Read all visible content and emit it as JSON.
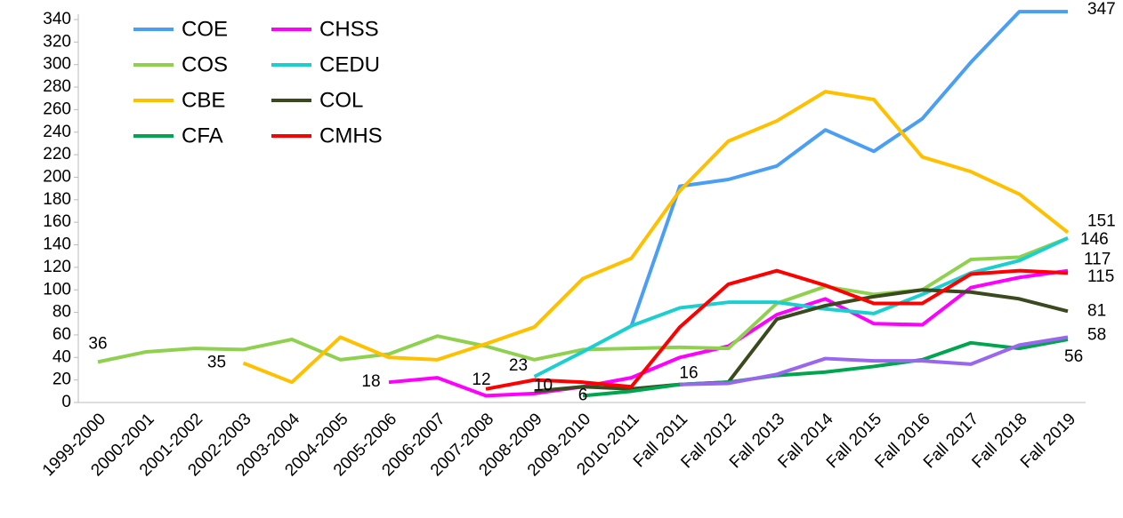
{
  "chart_data": {
    "type": "line",
    "categories": [
      "1999-2000",
      "2000-2001",
      "2001-2002",
      "2002-2003",
      "2003-2004",
      "2004-2005",
      "2005-2006",
      "2006-2007",
      "2007-2008",
      "2008-2009",
      "2009-2010",
      "2010-2011",
      "Fall 2011",
      "Fall 2012",
      "Fall 2013",
      "Fall 2014",
      "Fall 2015",
      "Fall 2016",
      "Fall 2017",
      "Fall 2018",
      "Fall 2019"
    ],
    "series": [
      {
        "name": "COE",
        "color": "#4a9ff5",
        "values": [
          null,
          null,
          null,
          null,
          null,
          null,
          null,
          null,
          null,
          null,
          null,
          68,
          192,
          198,
          210,
          242,
          223,
          252,
          302,
          347,
          347
        ]
      },
      {
        "name": "CHSS",
        "color": "#ff00ff",
        "values": [
          null,
          null,
          null,
          null,
          null,
          null,
          18,
          22,
          6,
          8,
          14,
          22,
          40,
          50,
          78,
          92,
          70,
          69,
          102,
          111,
          117
        ]
      },
      {
        "name": "COS",
        "color": "#8fd14f",
        "values": [
          36,
          45,
          48,
          47,
          56,
          38,
          43,
          59,
          50,
          38,
          47,
          48,
          49,
          48,
          88,
          103,
          96,
          100,
          127,
          129,
          146
        ]
      },
      {
        "name": "CEDU",
        "color": "#1ccfcf",
        "values": [
          null,
          null,
          null,
          null,
          null,
          null,
          null,
          null,
          null,
          23,
          45,
          68,
          84,
          89,
          89,
          83,
          79,
          96,
          115,
          126,
          146
        ]
      },
      {
        "name": "CBE",
        "color": "#ffc000",
        "values": [
          null,
          null,
          null,
          35,
          18,
          58,
          40,
          38,
          52,
          67,
          110,
          128,
          188,
          232,
          250,
          276,
          269,
          218,
          205,
          185,
          151
        ]
      },
      {
        "name": "COL",
        "color": "#3a4a1e",
        "values": [
          null,
          null,
          null,
          null,
          null,
          null,
          null,
          null,
          null,
          10,
          14,
          12,
          16,
          18,
          74,
          86,
          94,
          100,
          98,
          92,
          81
        ]
      },
      {
        "name": "CFA",
        "color": "#00a550",
        "values": [
          null,
          null,
          null,
          null,
          null,
          null,
          null,
          null,
          null,
          null,
          6,
          10,
          16,
          18,
          24,
          27,
          32,
          38,
          53,
          48,
          56
        ]
      },
      {
        "name": "CMHS",
        "color": "#ff0000",
        "values": [
          null,
          null,
          null,
          null,
          null,
          null,
          null,
          null,
          12,
          20,
          18,
          14,
          67,
          105,
          117,
          104,
          88,
          88,
          114,
          117,
          115
        ]
      },
      {
        "color": "#9966ee",
        "values": [
          null,
          null,
          null,
          null,
          null,
          null,
          null,
          null,
          null,
          null,
          null,
          null,
          16,
          17,
          25,
          39,
          37,
          37,
          34,
          51,
          58
        ]
      }
    ],
    "ylim": [
      0,
      340
    ],
    "yticks": [
      0,
      20,
      40,
      60,
      80,
      100,
      120,
      140,
      160,
      180,
      200,
      220,
      240,
      260,
      280,
      300,
      320,
      340
    ],
    "grid": false
  }
}
